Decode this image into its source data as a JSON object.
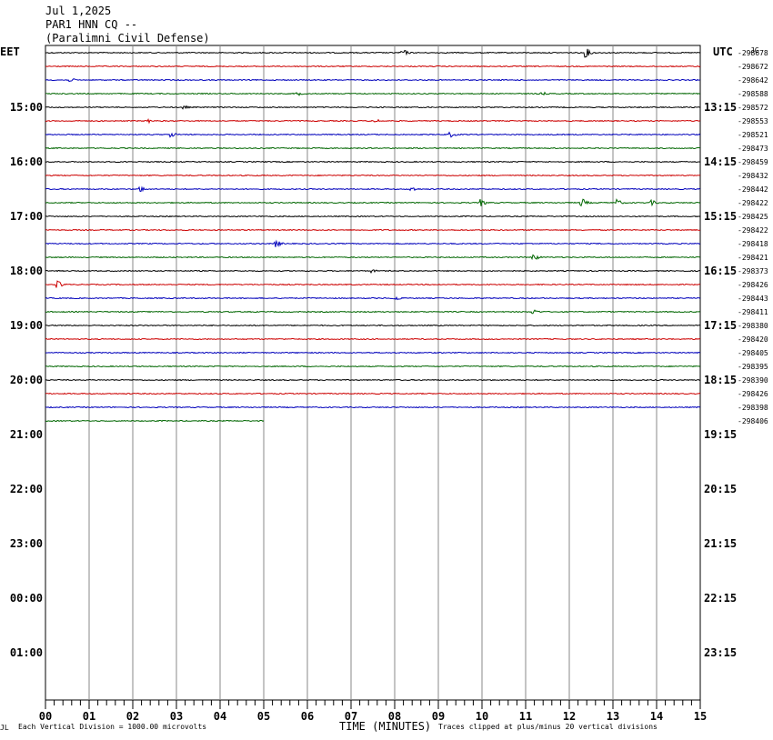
{
  "header": {
    "date": "Jul 1,2025",
    "station": "PAR1 HNN CQ --",
    "location": "(Paralimni Civil Defense)"
  },
  "corner_mark": "JG",
  "chart_data": {
    "type": "line",
    "left_label": "EET",
    "right_label": "UTC",
    "minutes_per_line": 15,
    "total_lines": 48,
    "colors": [
      "#000000",
      "#cc0000",
      "#0000bb",
      "#006600"
    ],
    "x_ticks": [
      "00",
      "01",
      "02",
      "03",
      "04",
      "05",
      "06",
      "07",
      "08",
      "09",
      "10",
      "11",
      "12",
      "13",
      "14",
      "15"
    ],
    "x_range": [
      0,
      15
    ],
    "xlabel": "TIME (MINUTES)",
    "left_hours": [
      "15:00",
      "16:00",
      "17:00",
      "18:00",
      "19:00",
      "20:00",
      "21:00",
      "22:00",
      "23:00",
      "00:00",
      "01:00"
    ],
    "right_hours": [
      "13:15",
      "14:15",
      "15:15",
      "16:15",
      "17:15",
      "18:15",
      "19:15",
      "20:15",
      "21:15",
      "22:15",
      "23:15"
    ],
    "trace_values": [
      "-298678",
      "-298672",
      "-298642",
      "-298588",
      "-298572",
      "-298553",
      "-298521",
      "-298473",
      "-298459",
      "-298432",
      "-298442",
      "-298422",
      "-298425",
      "-298422",
      "-298418",
      "-298421",
      "-298373",
      "-298426",
      "-298443",
      "-298411",
      "-298380",
      "-298420",
      "-298405",
      "-298395",
      "-298390",
      "-298426",
      "-298398",
      "-298406"
    ],
    "last_trace_end_minute": 5.0,
    "events": [
      {
        "line": 0,
        "minute": 8.2,
        "amp": 4
      },
      {
        "line": 0,
        "minute": 12.4,
        "amp": 5
      },
      {
        "line": 2,
        "minute": 0.6,
        "amp": 2
      },
      {
        "line": 3,
        "minute": 5.8,
        "amp": 2
      },
      {
        "line": 3,
        "minute": 11.4,
        "amp": 2
      },
      {
        "line": 4,
        "minute": 3.2,
        "amp": 2
      },
      {
        "line": 5,
        "minute": 2.4,
        "amp": 2
      },
      {
        "line": 5,
        "minute": 7.6,
        "amp": 2
      },
      {
        "line": 6,
        "minute": 2.9,
        "amp": 3
      },
      {
        "line": 6,
        "minute": 9.3,
        "amp": 3
      },
      {
        "line": 10,
        "minute": 2.2,
        "amp": 3
      },
      {
        "line": 10,
        "minute": 8.4,
        "amp": 3
      },
      {
        "line": 11,
        "minute": 10.0,
        "amp": 4
      },
      {
        "line": 11,
        "minute": 12.3,
        "amp": 5
      },
      {
        "line": 11,
        "minute": 13.1,
        "amp": 4
      },
      {
        "line": 11,
        "minute": 13.9,
        "amp": 3
      },
      {
        "line": 14,
        "minute": 5.3,
        "amp": 4
      },
      {
        "line": 15,
        "minute": 11.2,
        "amp": 4
      },
      {
        "line": 16,
        "minute": 7.5,
        "amp": 2
      },
      {
        "line": 17,
        "minute": 0.3,
        "amp": 4
      },
      {
        "line": 18,
        "minute": 8.0,
        "amp": 4
      },
      {
        "line": 19,
        "minute": 11.2,
        "amp": 3
      }
    ]
  },
  "footer": {
    "scale_note": "Each Vertical Division = 1000.00 microvolts",
    "clip_note": "Traces clipped at plus/minus 20 vertical divisions"
  }
}
